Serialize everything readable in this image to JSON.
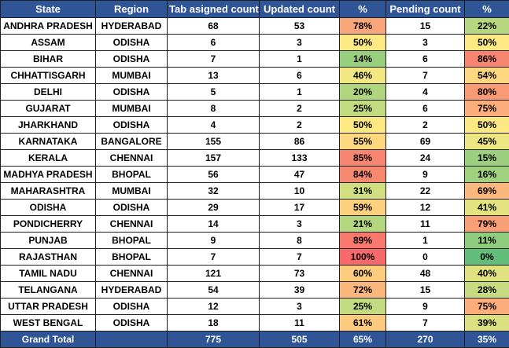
{
  "headers": [
    "State",
    "Region",
    "Tab asigned count",
    "Updated count",
    "%",
    "Pending count",
    "%"
  ],
  "rows": [
    {
      "state": "ANDHRA PRADESH",
      "region": "HYDERABAD",
      "assigned": "68",
      "updated": "53",
      "updated_pct": "78%",
      "updated_color": "#f8a77c",
      "pending": "15",
      "pending_pct": "22%",
      "pending_color": "#b6d77f"
    },
    {
      "state": "ASSAM",
      "region": "ODISHA",
      "assigned": "6",
      "updated": "3",
      "updated_pct": "50%",
      "updated_color": "#fde983",
      "pending": "3",
      "pending_pct": "50%",
      "pending_color": "#fde983"
    },
    {
      "state": "BIHAR",
      "region": "ODISHA",
      "assigned": "7",
      "updated": "1",
      "updated_pct": "14%",
      "updated_color": "#98cf7e",
      "pending": "6",
      "pending_pct": "86%",
      "pending_color": "#f88570"
    },
    {
      "state": "CHHATTISGARH",
      "region": "MUMBAI",
      "assigned": "13",
      "updated": "6",
      "updated_pct": "46%",
      "updated_color": "#f2e783",
      "pending": "7",
      "pending_pct": "54%",
      "pending_color": "#fed880"
    },
    {
      "state": "DELHI",
      "region": "ODISHA",
      "assigned": "5",
      "updated": "1",
      "updated_pct": "20%",
      "updated_color": "#b0d57f",
      "pending": "4",
      "pending_pct": "80%",
      "pending_color": "#f89a75"
    },
    {
      "state": "GUJARAT",
      "region": "MUMBAI",
      "assigned": "8",
      "updated": "2",
      "updated_pct": "25%",
      "updated_color": "#c3db80",
      "pending": "6",
      "pending_pct": "75%",
      "pending_color": "#fbad7b"
    },
    {
      "state": "JHARKHAND",
      "region": "ODISHA",
      "assigned": "4",
      "updated": "2",
      "updated_pct": "50%",
      "updated_color": "#fde983",
      "pending": "2",
      "pending_pct": "50%",
      "pending_color": "#fde983"
    },
    {
      "state": "KARNATAKA",
      "region": "BANGALORE",
      "assigned": "155",
      "updated": "86",
      "updated_pct": "55%",
      "updated_color": "#fed880",
      "pending": "69",
      "pending_pct": "45%",
      "pending_color": "#eee683"
    },
    {
      "state": "KERALA",
      "region": "CHENNAI",
      "assigned": "157",
      "updated": "133",
      "updated_pct": "85%",
      "updated_color": "#f88570",
      "pending": "24",
      "pending_pct": "15%",
      "pending_color": "#9cd07e"
    },
    {
      "state": "MADHYA PRADESH",
      "region": "BHOPAL",
      "assigned": "56",
      "updated": "47",
      "updated_pct": "84%",
      "updated_color": "#f88971",
      "pending": "9",
      "pending_pct": "16%",
      "pending_color": "#a0d17e"
    },
    {
      "state": "MAHARASHTRA",
      "region": "MUMBAI",
      "assigned": "32",
      "updated": "10",
      "updated_pct": "31%",
      "updated_color": "#d2df81",
      "pending": "22",
      "pending_pct": "69%",
      "pending_color": "#fbb87c"
    },
    {
      "state": "ODISHA",
      "region": "ODISHA",
      "assigned": "29",
      "updated": "17",
      "updated_pct": "59%",
      "updated_color": "#fdd07f",
      "pending": "12",
      "pending_pct": "41%",
      "pending_color": "#e4e382"
    },
    {
      "state": "PONDICHERRY",
      "region": "CHENNAI",
      "assigned": "14",
      "updated": "3",
      "updated_pct": "21%",
      "updated_color": "#b4d67f",
      "pending": "11",
      "pending_pct": "79%",
      "pending_color": "#f99f76"
    },
    {
      "state": "PUNJAB",
      "region": "BHOPAL",
      "assigned": "9",
      "updated": "8",
      "updated_pct": "89%",
      "updated_color": "#f8786d",
      "pending": "1",
      "pending_pct": "11%",
      "pending_color": "#8fcc7d"
    },
    {
      "state": "RAJASTHAN",
      "region": "BHOPAL",
      "assigned": "7",
      "updated": "7",
      "updated_pct": "100%",
      "updated_color": "#f8696b",
      "pending": "0",
      "pending_pct": "0%",
      "pending_color": "#63be7b"
    },
    {
      "state": "TAMIL NADU",
      "region": "CHENNAI",
      "assigned": "121",
      "updated": "73",
      "updated_pct": "60%",
      "updated_color": "#fdcd7e",
      "pending": "48",
      "pending_pct": "40%",
      "pending_color": "#e0e282"
    },
    {
      "state": "TELANGANA",
      "region": "HYDERABAD",
      "assigned": "54",
      "updated": "39",
      "updated_pct": "72%",
      "updated_color": "#fbb77c",
      "pending": "15",
      "pending_pct": "28%",
      "pending_color": "#c7dc80"
    },
    {
      "state": "UTTAR PRADESH",
      "region": "ODISHA",
      "assigned": "12",
      "updated": "3",
      "updated_pct": "25%",
      "updated_color": "#c3db80",
      "pending": "9",
      "pending_pct": "75%",
      "pending_color": "#fbad7b"
    },
    {
      "state": "WEST BENGAL",
      "region": "ODISHA",
      "assigned": "18",
      "updated": "11",
      "updated_pct": "61%",
      "updated_color": "#fdca7e",
      "pending": "7",
      "pending_pct": "39%",
      "pending_color": "#dbe081"
    }
  ],
  "total": {
    "label": "Grand Total",
    "region": "",
    "assigned": "775",
    "updated": "505",
    "updated_pct": "65%",
    "pending": "270",
    "pending_pct": "35%"
  },
  "colors": {
    "header_bg": "#2f5597",
    "header_text": "#ffffff",
    "scale_low": "#63be7b",
    "scale_mid": "#ffeb84",
    "scale_high": "#f8696b"
  }
}
